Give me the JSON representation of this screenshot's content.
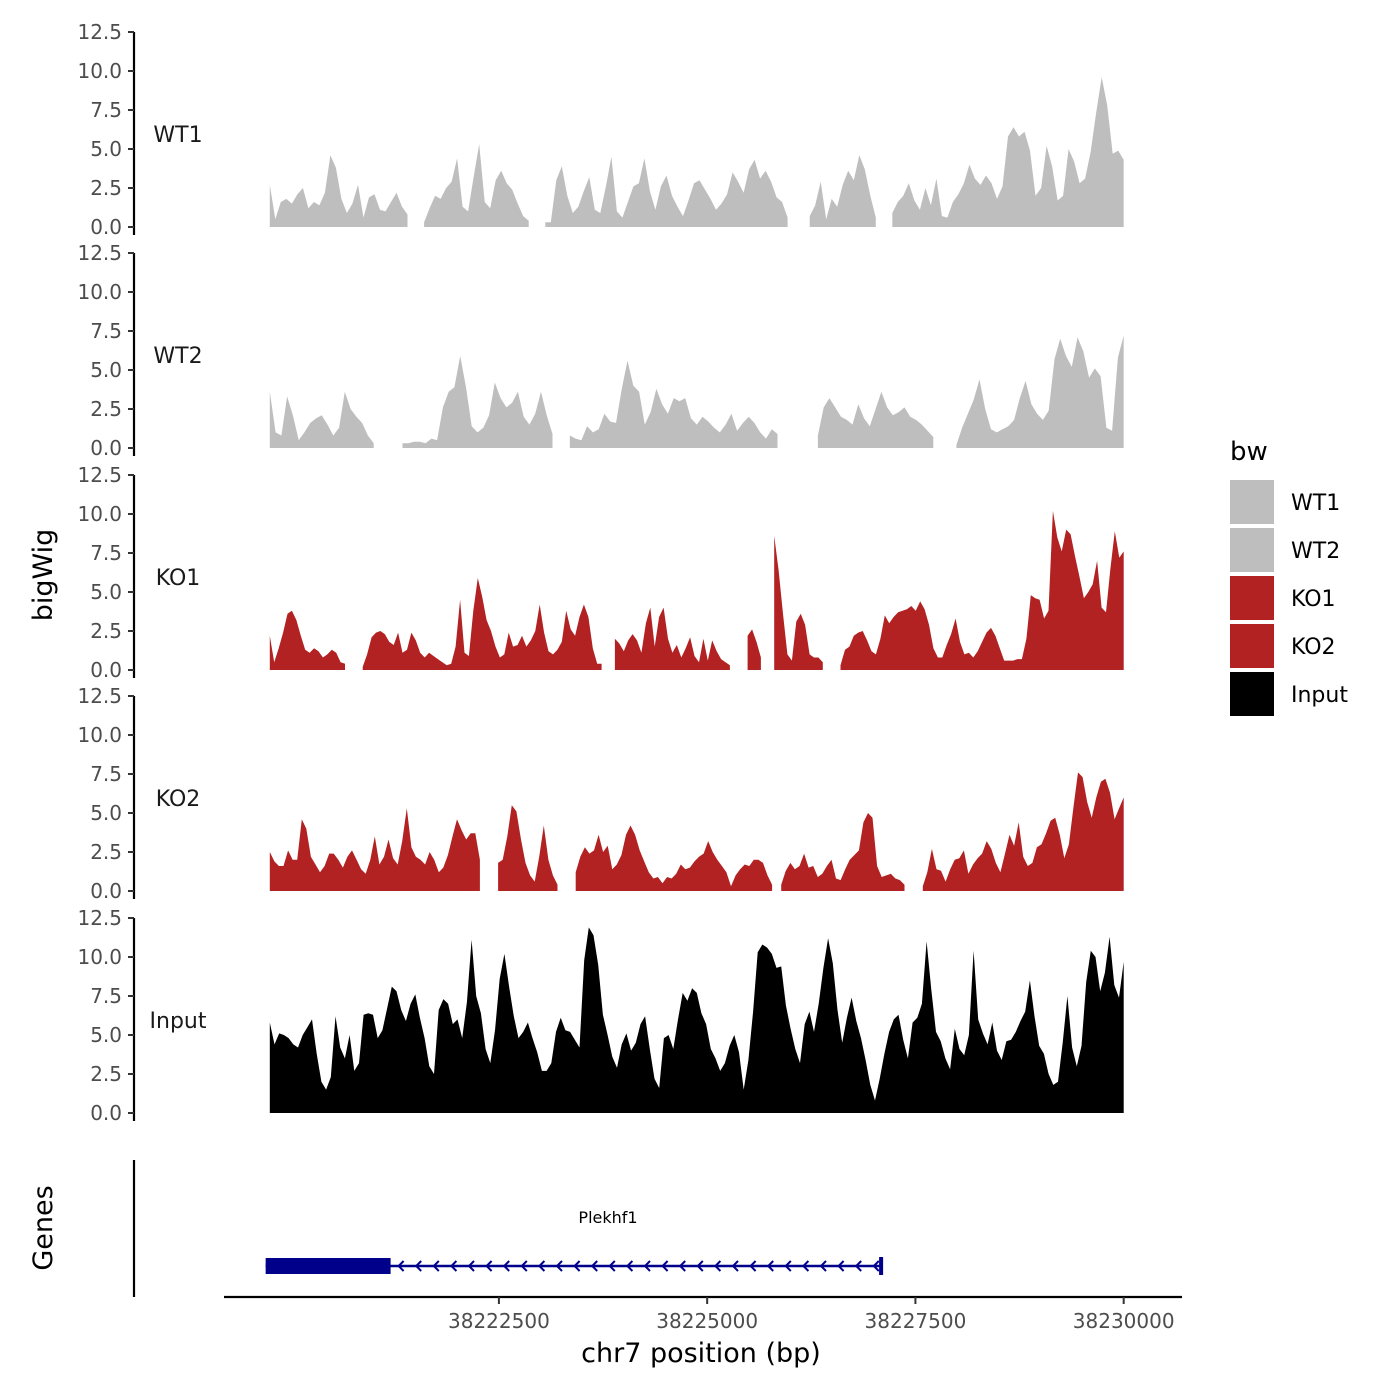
{
  "chart_data": {
    "type": "area",
    "title": "",
    "xlabel": "chr7 position (bp)",
    "ylabel": "bigWig",
    "genes_label": "Genes",
    "xlim": [
      38219200,
      38230700
    ],
    "data_xrange": [
      38219750,
      38230000
    ],
    "ylim": [
      0,
      12.5
    ],
    "y_ticks": [
      "0.0",
      "2.5",
      "5.0",
      "7.5",
      "10.0",
      "12.5"
    ],
    "y_tick_values": [
      0,
      2.5,
      5,
      7.5,
      10,
      12.5
    ],
    "x_ticks": [
      "38222500",
      "38225000",
      "38227500",
      "38230000"
    ],
    "x_tick_values": [
      38222500,
      38225000,
      38227500,
      38230000
    ],
    "legend": {
      "title": "bw",
      "entries": [
        {
          "label": "WT1",
          "color": "#bebebe"
        },
        {
          "label": "WT2",
          "color": "#bebebe"
        },
        {
          "label": "KO1",
          "color": "#b22222"
        },
        {
          "label": "KO2",
          "color": "#b22222"
        },
        {
          "label": "Input",
          "color": "#000000"
        }
      ]
    },
    "series": [
      {
        "name": "WT1",
        "color": "#bebebe",
        "values": [
          2.7,
          0.5,
          1.6,
          1.8,
          1.5,
          2.1,
          2.5,
          1.2,
          1.6,
          1.4,
          2.2,
          4.6,
          3.8,
          1.8,
          0.9,
          1.5,
          2.7,
          0.6,
          1.9,
          2.1,
          1.1,
          1.0,
          1.6,
          2.2,
          1.3,
          0.8,
          0,
          0,
          0.3,
          1.2,
          2.0,
          1.8,
          2.5,
          2.9,
          4.4,
          1.3,
          1.0,
          3.2,
          5.3,
          1.6,
          1.2,
          3.0,
          3.6,
          2.8,
          2.4,
          1.5,
          0.7,
          0.4,
          0,
          0,
          0.3,
          0.3,
          3.0,
          3.9,
          2.0,
          0.9,
          1.3,
          2.3,
          3.2,
          1.1,
          0.9,
          2.6,
          4.5,
          1.0,
          0.6,
          1.6,
          2.6,
          2.8,
          4.4,
          2.3,
          1.1,
          2.6,
          3.3,
          2.0,
          1.3,
          0.7,
          1.7,
          2.8,
          3.0,
          2.4,
          1.8,
          1.1,
          1.5,
          2.1,
          3.5,
          2.9,
          2.2,
          3.7,
          4.3,
          3.1,
          3.6,
          2.9,
          1.9,
          1.6,
          0.6,
          0,
          0,
          0,
          0.7,
          1.4,
          2.9,
          0.5,
          1.8,
          1.3,
          2.7,
          3.6,
          3.0,
          4.6,
          3.7,
          2.0,
          0.6,
          0,
          0,
          0.9,
          1.6,
          2.0,
          2.8,
          1.7,
          1.1,
          2.5,
          1.4,
          3.1,
          0.7,
          0.6,
          1.6,
          2.1,
          2.8,
          4.0,
          3.1,
          2.7,
          3.3,
          2.8,
          1.8,
          2.6,
          5.8,
          6.4,
          5.8,
          6.1,
          4.9,
          2.0,
          2.5,
          5.2,
          3.9,
          1.7,
          2.0,
          5.0,
          4.2,
          2.8,
          3.1,
          4.8,
          7.3,
          9.6,
          7.8,
          4.7,
          4.9,
          4.3
        ]
      },
      {
        "name": "WT2",
        "color": "#bebebe",
        "values": [
          3.6,
          1.0,
          0.8,
          3.3,
          2.1,
          0.5,
          1.0,
          1.6,
          1.9,
          2.1,
          1.5,
          0.8,
          1.3,
          3.6,
          2.5,
          2.0,
          1.6,
          0.8,
          0.3,
          0,
          0,
          0,
          0,
          0.3,
          0.3,
          0.4,
          0.4,
          0.3,
          0.6,
          0.5,
          2.6,
          3.6,
          3.9,
          5.9,
          3.9,
          1.4,
          1.0,
          1.3,
          2.1,
          4.2,
          3.2,
          2.6,
          2.9,
          3.6,
          2.0,
          1.5,
          2.2,
          3.6,
          2.1,
          0.9,
          0,
          0,
          0.8,
          0.6,
          0.5,
          1.4,
          1.0,
          1.2,
          2.2,
          1.7,
          1.6,
          3.8,
          5.6,
          4.0,
          3.6,
          1.5,
          2.3,
          3.8,
          2.8,
          2.2,
          3.2,
          3.0,
          3.2,
          1.9,
          1.5,
          2.0,
          1.7,
          1.3,
          1.0,
          1.5,
          2.2,
          1.1,
          1.6,
          2.0,
          1.6,
          1.0,
          0.6,
          1.2,
          0.9,
          0,
          0,
          0,
          0,
          0,
          0,
          0.8,
          2.6,
          3.2,
          2.6,
          2.0,
          1.8,
          1.5,
          2.8,
          1.9,
          1.4,
          2.5,
          3.6,
          2.6,
          2.1,
          2.3,
          2.6,
          2.0,
          1.8,
          1.5,
          1.1,
          0.7,
          0,
          0,
          0,
          0.2,
          1.3,
          2.2,
          3.1,
          4.4,
          2.5,
          1.2,
          1.0,
          1.2,
          1.4,
          1.8,
          3.2,
          4.3,
          2.8,
          2.2,
          1.8,
          2.4,
          5.7,
          7.0,
          5.9,
          5.2,
          7.1,
          6.2,
          4.5,
          5.1,
          4.6,
          1.3,
          1.1,
          5.8,
          7.2
        ]
      },
      {
        "name": "KO1",
        "color": "#b22222",
        "values": [
          2.2,
          0.5,
          1.4,
          2.4,
          3.6,
          3.8,
          3.2,
          2.2,
          1.3,
          1.1,
          1.4,
          1.2,
          0.8,
          1.0,
          1.3,
          1.1,
          0.5,
          0.4,
          0,
          0,
          0,
          0.2,
          1.0,
          2.1,
          2.4,
          2.5,
          2.3,
          1.8,
          1.6,
          2.4,
          1.1,
          1.3,
          2.4,
          1.9,
          1.1,
          0.8,
          1.1,
          0.9,
          0.7,
          0.5,
          0.3,
          0.4,
          1.5,
          4.5,
          1.1,
          0.9,
          3.8,
          5.9,
          4.7,
          3.2,
          2.5,
          1.5,
          0.8,
          1.0,
          2.4,
          1.5,
          1.6,
          2.2,
          1.5,
          1.9,
          2.5,
          4.2,
          2.4,
          1.2,
          1.0,
          1.3,
          1.8,
          3.8,
          2.6,
          2.2,
          3.4,
          4.2,
          3.4,
          1.4,
          0.4,
          0.4,
          0,
          0,
          2.0,
          1.7,
          1.2,
          1.9,
          2.3,
          1.9,
          1.1,
          3.0,
          4.0,
          1.5,
          3.4,
          4.0,
          2.0,
          1.1,
          1.6,
          0.8,
          1.4,
          2.1,
          0.9,
          0.5,
          2.0,
          0.6,
          1.9,
          1.2,
          0.7,
          0.5,
          0.3,
          0,
          0,
          0,
          2.2,
          2.6,
          1.8,
          0.8,
          0,
          0,
          8.6,
          6.4,
          3.6,
          1.0,
          0.6,
          3.1,
          3.6,
          2.9,
          1.0,
          0.8,
          0.8,
          0.5,
          0,
          0,
          0,
          0.3,
          1.3,
          1.5,
          2.2,
          2.4,
          2.5,
          1.9,
          1.2,
          1.0,
          2.0,
          3.5,
          3.0,
          3.4,
          3.7,
          3.8,
          3.9,
          4.1,
          3.8,
          4.4,
          3.9,
          2.9,
          1.4,
          0.8,
          0.8,
          1.6,
          2.3,
          3.3,
          1.8,
          1.0,
          1.1,
          0.8,
          1.2,
          1.8,
          2.4,
          2.7,
          2.2,
          1.4,
          0.6,
          0.6,
          0.6,
          0.7,
          0.7,
          2.0,
          4.8,
          4.6,
          4.5,
          3.3,
          3.8,
          10.2,
          8.5,
          7.6,
          9.0,
          8.7,
          7.3,
          6.0,
          4.6,
          5.0,
          5.5,
          7.0,
          4.0,
          3.7,
          6.5,
          8.9,
          7.2,
          7.6
        ]
      },
      {
        "name": "KO2",
        "color": "#b22222",
        "values": [
          2.5,
          1.9,
          1.6,
          1.6,
          2.6,
          2.0,
          2.0,
          4.6,
          4.0,
          2.2,
          1.7,
          1.2,
          1.6,
          2.4,
          2.4,
          2.0,
          1.5,
          2.2,
          2.6,
          2.0,
          1.4,
          1.1,
          2.0,
          3.5,
          1.7,
          2.2,
          3.3,
          2.1,
          1.7,
          3.2,
          5.3,
          2.8,
          2.2,
          2.0,
          1.7,
          2.5,
          2.0,
          1.2,
          1.5,
          2.3,
          3.5,
          4.6,
          3.9,
          3.3,
          3.7,
          3.7,
          2.0,
          0,
          0,
          0,
          1.8,
          2.0,
          3.5,
          5.5,
          5.1,
          3.3,
          1.8,
          1.0,
          0.6,
          2.2,
          4.2,
          2.0,
          1.0,
          0.4,
          0,
          0,
          0,
          1.2,
          2.2,
          2.8,
          2.4,
          2.6,
          3.6,
          2.5,
          2.9,
          1.4,
          1.7,
          2.3,
          3.6,
          4.2,
          3.6,
          2.6,
          1.9,
          1.2,
          0.8,
          0.9,
          0.5,
          0.9,
          0.8,
          1.1,
          1.7,
          1.4,
          1.5,
          1.9,
          2.2,
          2.4,
          3.2,
          2.5,
          2.0,
          1.6,
          1.2,
          0.3,
          1.0,
          1.4,
          1.7,
          1.6,
          2.0,
          2.0,
          1.8,
          1.0,
          0.4,
          0,
          0.4,
          1.3,
          1.8,
          1.4,
          1.6,
          2.4,
          1.5,
          1.6,
          0.9,
          1.1,
          1.6,
          2.0,
          0.8,
          0.7,
          1.4,
          2.0,
          2.3,
          2.6,
          4.4,
          5.0,
          4.7,
          1.6,
          0.9,
          1.0,
          1.1,
          0.8,
          0.7,
          0.4,
          0,
          0,
          0,
          0.3,
          1.2,
          2.7,
          1.4,
          1.3,
          0.6,
          1.4,
          2.0,
          2.1,
          2.6,
          1.1,
          1.7,
          2.1,
          2.4,
          3.2,
          2.7,
          1.8,
          1.2,
          2.4,
          3.6,
          2.9,
          4.4,
          2.2,
          1.6,
          1.8,
          2.8,
          3.0,
          3.7,
          4.5,
          4.7,
          3.6,
          2.1,
          3.0,
          5.4,
          7.6,
          7.3,
          5.7,
          4.7,
          6.0,
          7.0,
          7.2,
          6.3,
          4.6,
          5.3,
          6.0
        ]
      },
      {
        "name": "Input",
        "color": "#000000",
        "values": [
          5.8,
          4.4,
          5.1,
          5.0,
          4.8,
          4.4,
          4.2,
          5.0,
          5.5,
          6.0,
          3.8,
          2.0,
          1.5,
          2.3,
          6.2,
          4.2,
          3.5,
          5.0,
          2.7,
          3.2,
          6.3,
          6.4,
          6.3,
          4.8,
          5.3,
          6.7,
          8.1,
          7.8,
          6.6,
          5.9,
          7.0,
          7.6,
          6.1,
          4.8,
          3.0,
          2.5,
          6.6,
          7.3,
          7.0,
          5.7,
          6.0,
          4.8,
          7.1,
          11.1,
          7.5,
          6.4,
          4.1,
          3.2,
          5.3,
          8.6,
          10.2,
          8.1,
          6.2,
          4.8,
          5.2,
          5.8,
          4.8,
          3.9,
          2.7,
          2.7,
          3.2,
          5.2,
          6.1,
          5.3,
          5.2,
          4.7,
          4.2,
          9.8,
          11.9,
          11.4,
          9.5,
          6.3,
          5.0,
          3.6,
          2.9,
          4.4,
          5.1,
          4.0,
          4.5,
          5.7,
          6.2,
          4.1,
          2.2,
          1.6,
          4.8,
          5.0,
          4.1,
          6.0,
          7.7,
          7.2,
          8.0,
          7.7,
          6.4,
          5.7,
          4.1,
          3.5,
          2.7,
          3.2,
          4.3,
          5.0,
          3.9,
          1.5,
          3.4,
          6.5,
          10.3,
          10.8,
          10.6,
          10.2,
          9.3,
          9.4,
          6.9,
          5.4,
          4.1,
          3.2,
          5.7,
          6.5,
          5.2,
          7.0,
          9.3,
          11.2,
          9.6,
          6.6,
          4.5,
          6.1,
          7.4,
          5.9,
          4.8,
          3.4,
          1.8,
          0.8,
          2.2,
          3.8,
          5.2,
          6.0,
          6.3,
          4.7,
          3.5,
          5.8,
          6.1,
          7.0,
          11.0,
          7.9,
          5.2,
          4.6,
          3.5,
          2.8,
          5.4,
          4.1,
          3.7,
          5.0,
          10.4,
          6.0,
          5.1,
          4.4,
          5.8,
          4.0,
          3.4,
          4.6,
          4.7,
          5.2,
          5.9,
          6.5,
          8.5,
          6.2,
          4.3,
          3.8,
          2.5,
          1.8,
          2.0,
          4.5,
          7.5,
          4.2,
          3.0,
          4.3,
          8.4,
          10.4,
          10.0,
          7.8,
          9.0,
          11.3,
          8.2,
          7.4,
          9.7
        ]
      }
    ],
    "gene": {
      "name": "Plekhf1",
      "start": 38219700,
      "end": 38227100,
      "thick_start": 38219700,
      "thick_end": 38221200,
      "strand": "-",
      "color": "#00008b"
    }
  }
}
